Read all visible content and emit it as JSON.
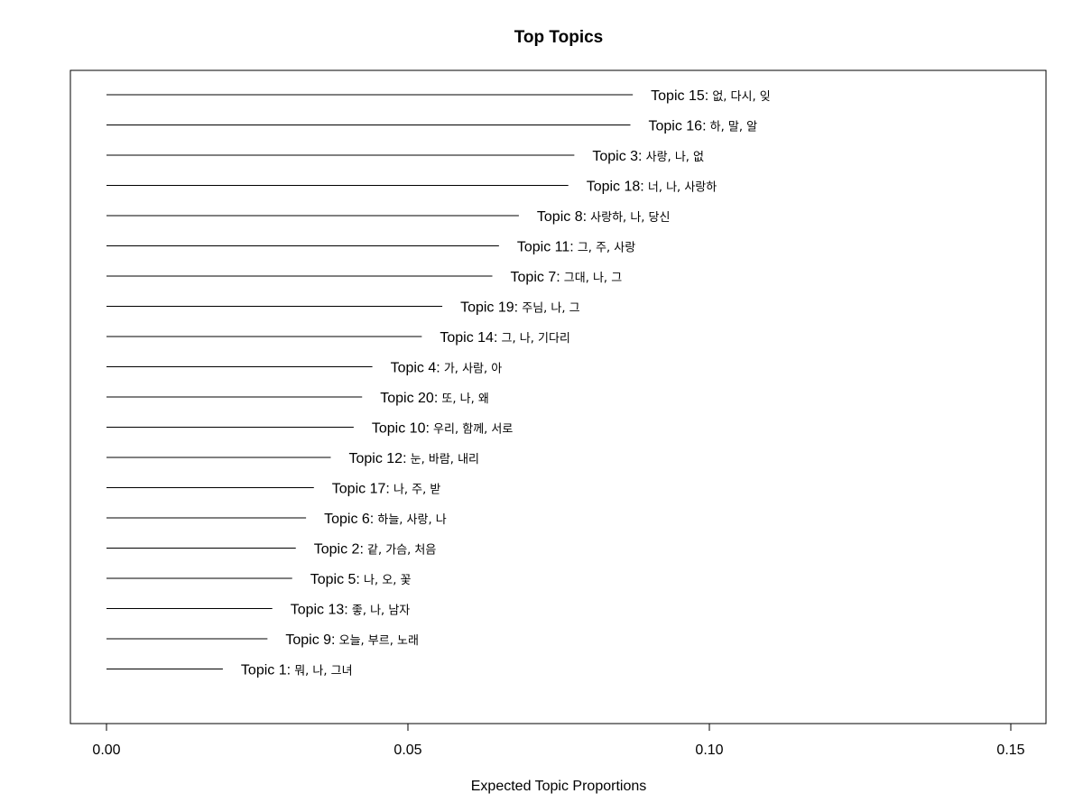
{
  "chart_data": {
    "type": "bar",
    "orientation": "horizontal",
    "title": "Top Topics",
    "xlabel": "Expected Topic Proportions",
    "ylabel": "",
    "xlim": [
      0,
      0.15
    ],
    "xticks": [
      0.0,
      0.05,
      0.1,
      0.15
    ],
    "xtick_labels": [
      "0.00",
      "0.05",
      "0.10",
      "0.15"
    ],
    "grid": false,
    "legend": "none",
    "bars": [
      {
        "topic": "Topic 15:",
        "words": " 없, 다시, 잊",
        "value": 0.0873
      },
      {
        "topic": "Topic 16:",
        "words": " 하, 말, 알",
        "value": 0.0869
      },
      {
        "topic": "Topic 3:",
        "words": " 사랑, 나, 없",
        "value": 0.0776
      },
      {
        "topic": "Topic 18:",
        "words": " 너, 나, 사랑하",
        "value": 0.0766
      },
      {
        "topic": "Topic 8:",
        "words": " 사랑하, 나, 당신",
        "value": 0.0684
      },
      {
        "topic": "Topic 11:",
        "words": " 그, 주, 사랑",
        "value": 0.0651
      },
      {
        "topic": "Topic 7:",
        "words": " 그대, 나, 그",
        "value": 0.064
      },
      {
        "topic": "Topic 19:",
        "words": " 주님, 나, 그",
        "value": 0.0557
      },
      {
        "topic": "Topic 14:",
        "words": " 그, 나, 기다리",
        "value": 0.0523
      },
      {
        "topic": "Topic 4:",
        "words": " 가, 사람, 아",
        "value": 0.0441
      },
      {
        "topic": "Topic 20:",
        "words": " 또, 나, 왜",
        "value": 0.0424
      },
      {
        "topic": "Topic 10:",
        "words": " 우리, 함께, 서로",
        "value": 0.041
      },
      {
        "topic": "Topic 12:",
        "words": " 눈, 바람, 내리",
        "value": 0.0372
      },
      {
        "topic": "Topic 17:",
        "words": " 나, 주, 받",
        "value": 0.0344
      },
      {
        "topic": "Topic 6:",
        "words": " 하늘, 사랑, 나",
        "value": 0.0331
      },
      {
        "topic": "Topic 2:",
        "words": " 같, 가슴, 처음",
        "value": 0.0314
      },
      {
        "topic": "Topic 5:",
        "words": " 나, 오, 꽃",
        "value": 0.0308
      },
      {
        "topic": "Topic 13:",
        "words": " 좋, 나, 남자",
        "value": 0.0275
      },
      {
        "topic": "Topic 9:",
        "words": " 오늘, 부르, 노래",
        "value": 0.0267
      },
      {
        "topic": "Topic 1:",
        "words": " 뭐, 나, 그녀",
        "value": 0.0193
      }
    ]
  }
}
